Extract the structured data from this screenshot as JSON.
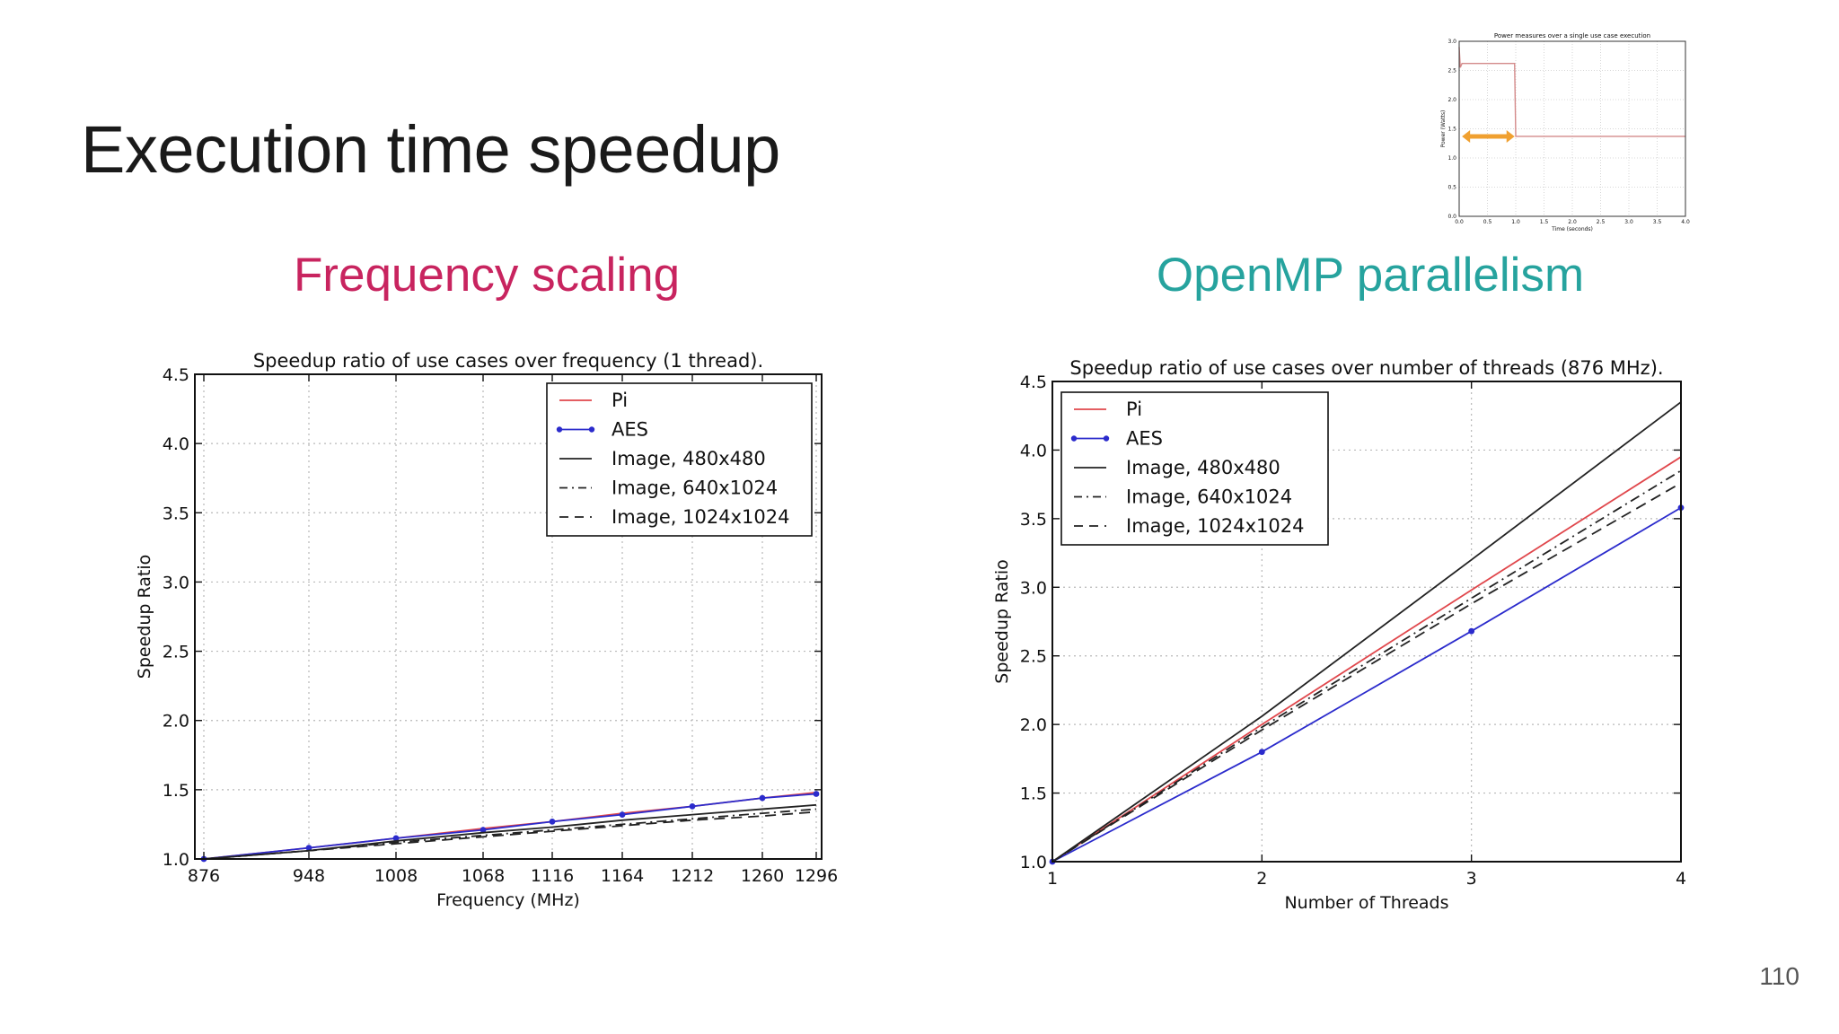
{
  "slide": {
    "title": "Execution time speedup",
    "subtitle_left": "Frequency scaling",
    "subtitle_right": "OpenMP parallelism",
    "page_number": "110",
    "colors": {
      "left_subtitle": "#c8245f",
      "right_subtitle": "#26a39e",
      "pi": "#e0474c",
      "aes": "#2b2bcc",
      "image": "#222222",
      "power_line": "#d48a8a",
      "arrow": "#f0a030"
    }
  },
  "chart_data": [
    {
      "type": "line",
      "title": "Speedup ratio of use cases over frequency (1 thread).",
      "xlabel": "Frequency (MHz)",
      "ylabel": "Speedup Ratio",
      "x": [
        876,
        948,
        1008,
        1068,
        1116,
        1164,
        1212,
        1260,
        1296
      ],
      "xticks": [
        "876",
        "948",
        "1008",
        "1068",
        "1116",
        "1164",
        "1212",
        "1260",
        "1296"
      ],
      "yticks": [
        "1.0",
        "1.5",
        "2.0",
        "2.5",
        "3.0",
        "3.5",
        "4.0",
        "4.5"
      ],
      "ylim": [
        1.0,
        4.5
      ],
      "grid": true,
      "legend_position": "top-right",
      "series": [
        {
          "name": "Pi",
          "style": "solid",
          "color": "#e0474c",
          "values": [
            1.0,
            1.08,
            1.15,
            1.22,
            1.27,
            1.33,
            1.38,
            1.44,
            1.48
          ]
        },
        {
          "name": "AES",
          "style": "solid-dots",
          "color": "#2b2bcc",
          "values": [
            1.0,
            1.08,
            1.15,
            1.21,
            1.27,
            1.32,
            1.38,
            1.44,
            1.47
          ]
        },
        {
          "name": "Image,  480x480",
          "style": "solid",
          "color": "#222222",
          "values": [
            1.0,
            1.06,
            1.13,
            1.19,
            1.23,
            1.28,
            1.32,
            1.36,
            1.39
          ]
        },
        {
          "name": "Image,  640x1024",
          "style": "dashdot",
          "color": "#222222",
          "values": [
            1.0,
            1.06,
            1.12,
            1.17,
            1.21,
            1.25,
            1.29,
            1.33,
            1.36
          ]
        },
        {
          "name": "Image, 1024x1024",
          "style": "dashed",
          "color": "#222222",
          "values": [
            1.0,
            1.06,
            1.11,
            1.16,
            1.2,
            1.24,
            1.28,
            1.31,
            1.34
          ]
        }
      ]
    },
    {
      "type": "line",
      "title": "Speedup ratio of use cases over number of threads (876 MHz).",
      "xlabel": "Number of Threads",
      "ylabel": "Speedup Ratio",
      "x": [
        1,
        2,
        3,
        4
      ],
      "xticks": [
        "1",
        "2",
        "3",
        "4"
      ],
      "yticks": [
        "1.0",
        "1.5",
        "2.0",
        "2.5",
        "3.0",
        "3.5",
        "4.0",
        "4.5"
      ],
      "ylim": [
        1.0,
        4.5
      ],
      "grid": true,
      "legend_position": "top-left",
      "series": [
        {
          "name": "Pi",
          "style": "solid",
          "color": "#e0474c",
          "values": [
            1.0,
            2.0,
            2.98,
            3.95
          ]
        },
        {
          "name": "AES",
          "style": "solid-dots",
          "color": "#2b2bcc",
          "values": [
            1.0,
            1.8,
            2.68,
            3.58
          ]
        },
        {
          "name": "Image,  480x480",
          "style": "solid",
          "color": "#222222",
          "values": [
            1.0,
            2.06,
            3.2,
            4.35
          ]
        },
        {
          "name": "Image,  640x1024",
          "style": "dashdot",
          "color": "#222222",
          "values": [
            1.0,
            1.98,
            2.92,
            3.85
          ]
        },
        {
          "name": "Image, 1024x1024",
          "style": "dashed",
          "color": "#222222",
          "values": [
            1.0,
            1.96,
            2.88,
            3.76
          ]
        }
      ]
    },
    {
      "type": "line",
      "title": "Power measures over a single use case execution",
      "xlabel": "Time (seconds)",
      "ylabel": "Power (Watts)",
      "xticks": [
        "0.0",
        "0.5",
        "1.0",
        "1.5",
        "2.0",
        "2.5",
        "3.0",
        "3.5",
        "4.0"
      ],
      "yticks": [
        "0.0",
        "0.5",
        "1.0",
        "1.5",
        "2.0",
        "2.5",
        "3.0"
      ],
      "xlim": [
        0,
        4
      ],
      "ylim": [
        0,
        3
      ],
      "grid": true,
      "series": [
        {
          "color": "#d48a8a",
          "x": [
            0,
            0.02,
            0.05,
            0.98,
            1.0,
            4.0
          ],
          "values": [
            2.9,
            2.55,
            2.62,
            2.62,
            1.37,
            1.37
          ]
        }
      ],
      "annotation": {
        "type": "double-arrow",
        "x_from": 0.05,
        "x_to": 0.98,
        "y": 1.37,
        "color": "#f0a030"
      }
    }
  ]
}
